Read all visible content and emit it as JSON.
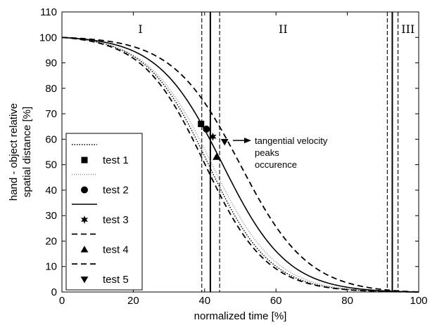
{
  "chart_data": {
    "type": "line",
    "xlabel": "normalized time [%]",
    "ylabel_lines": [
      "hand - object relative",
      "spatial distance [%]"
    ],
    "xlim": [
      0,
      100
    ],
    "ylim": [
      0,
      110
    ],
    "x_ticks": [
      0,
      20,
      40,
      60,
      80,
      100
    ],
    "y_ticks": [
      0,
      10,
      20,
      30,
      40,
      50,
      60,
      70,
      80,
      90,
      100,
      110
    ],
    "grid": false,
    "legend_position": "bottom-left",
    "region_labels": [
      {
        "text": "I",
        "x": 22
      },
      {
        "text": "II",
        "x": 62
      },
      {
        "text": "III",
        "x": 97
      }
    ],
    "annotation": {
      "lines": [
        "tangential velocity",
        "peaks",
        "occurence"
      ]
    },
    "vertical_lines": [
      {
        "x": 39.2,
        "style": "dashed"
      },
      {
        "x": 41.6,
        "style": "solid"
      },
      {
        "x": 44.2,
        "style": "dashed"
      },
      {
        "x": 91.2,
        "style": "dashed"
      },
      {
        "x": 92.6,
        "style": "solid"
      },
      {
        "x": 94.2,
        "style": "dashed"
      }
    ],
    "series": [
      {
        "style": "dotted",
        "sigmoid_mid": 41.0,
        "sigmoid_k": 0.115
      },
      {
        "style": "dotted-light",
        "sigmoid_mid": 42.0,
        "sigmoid_k": 0.112
      },
      {
        "style": "solid",
        "sigmoid_mid": 45.0,
        "sigmoid_k": 0.11
      },
      {
        "style": "dashed",
        "sigmoid_mid": 40.0,
        "sigmoid_k": 0.115
      },
      {
        "style": "dashed",
        "sigmoid_mid": 50.0,
        "sigmoid_k": 0.105
      }
    ],
    "markers": [
      {
        "name": "test 1",
        "symbol": "square",
        "x": 39.0,
        "y": 66
      },
      {
        "name": "test 2",
        "symbol": "circle",
        "x": 40.5,
        "y": 64
      },
      {
        "name": "test 3",
        "symbol": "star",
        "x": 42.3,
        "y": 61
      },
      {
        "name": "test 4",
        "symbol": "triangle-up",
        "x": 43.3,
        "y": 53
      },
      {
        "name": "test 5",
        "symbol": "triangle-down",
        "x": 45.6,
        "y": 59
      }
    ],
    "legend": [
      {
        "line_style": "dotted",
        "symbol": "square",
        "label": "test 1"
      },
      {
        "line_style": "dotted-light",
        "symbol": "circle",
        "label": "test 2"
      },
      {
        "line_style": "solid",
        "symbol": "star",
        "label": "test 3"
      },
      {
        "line_style": "dashed",
        "symbol": "triangle-up",
        "label": "test 4"
      },
      {
        "line_style": "dashed",
        "symbol": "triangle-down",
        "label": "test 5"
      }
    ]
  }
}
